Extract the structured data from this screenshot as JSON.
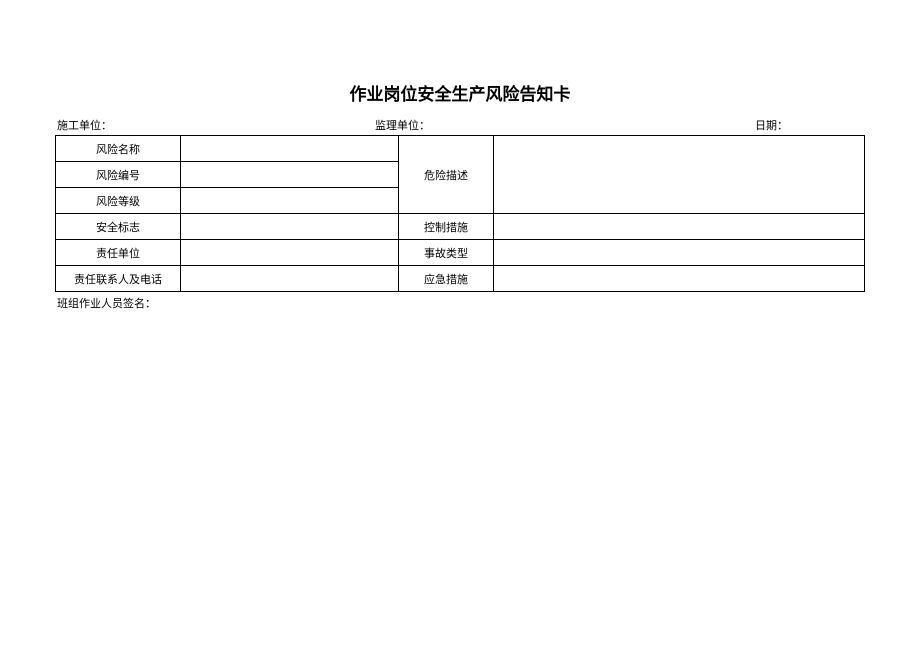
{
  "title": "作业岗位安全生产风险告知卡",
  "header": {
    "construction_unit_label": "施工单位：",
    "supervision_unit_label": "监理单位：",
    "date_label": "日期："
  },
  "table": {
    "risk_name_label": "风险名称",
    "risk_name_value": "",
    "risk_number_label": "风险编号",
    "risk_number_value": "",
    "risk_level_label": "风险等级",
    "risk_level_value": "",
    "hazard_description_label": "危险描述",
    "hazard_description_value": "",
    "safety_sign_label": "安全标志",
    "safety_sign_value": "",
    "control_measure_label": "控制措施",
    "control_measure_value": "",
    "responsible_unit_label": "责任单位",
    "responsible_unit_value": "",
    "accident_type_label": "事故类型",
    "accident_type_value": "",
    "contact_label": "责任联系人及电话",
    "contact_value": "",
    "emergency_measure_label": "应急措施",
    "emergency_measure_value": ""
  },
  "footer": {
    "signature_label": "班组作业人员签名："
  }
}
